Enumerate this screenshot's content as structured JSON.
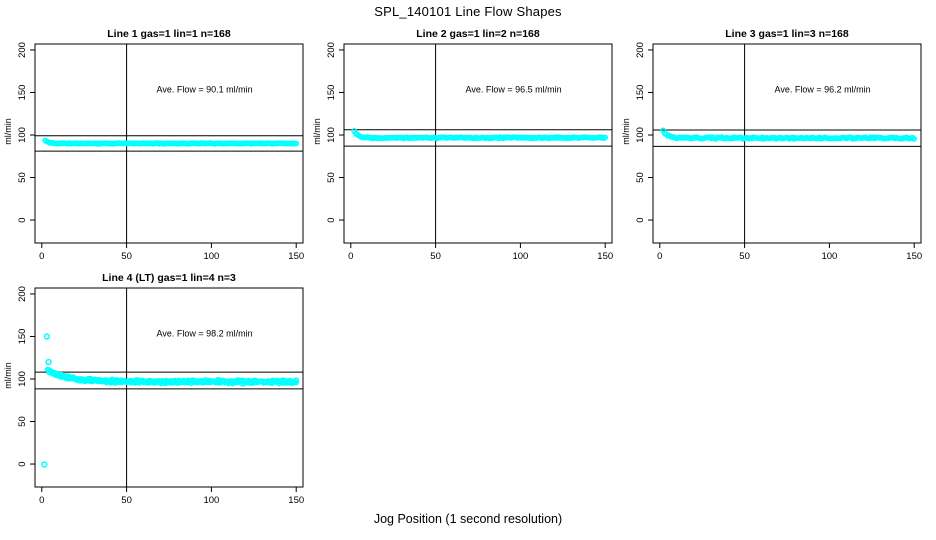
{
  "figure": {
    "title": "SPL_140101  Line Flow Shapes",
    "xlabel": "Jog Position (1 second resolution)"
  },
  "chart_data": {
    "type": "scatter",
    "title": "SPL_140101  Line Flow Shapes",
    "xlabel": "Jog Position (1 second resolution)",
    "ylabel": "ml/min",
    "point_color": "#00FFFF",
    "line_color": "#000000",
    "x_ticks": [
      0,
      50,
      100,
      150
    ],
    "y_ticks": [
      0,
      50,
      100,
      150,
      200
    ],
    "x_range": [
      -4,
      154
    ],
    "y_range": [
      -27,
      207
    ],
    "grid": false,
    "legend": "none",
    "plots": [
      {
        "title": "Line 1 gas=1 lin=1 n=168",
        "annotation": "Ave. Flow =  90.1  ml/min",
        "ave_flow_ml_min": 90.1,
        "n_points": 168,
        "ref_lines": {
          "horizontal": [
            99.11,
            81.09
          ],
          "vertical": 50
        },
        "annotation_pos": {
          "x": 96,
          "y": 150
        },
        "bands": [
          {
            "x_start": 2,
            "x_end": 150,
            "n": 168,
            "y_start": 93.5,
            "y_settle": 90.1,
            "decay": 0.5,
            "jitter": 0.55,
            "seed": 11
          }
        ],
        "outliers": []
      },
      {
        "title": "Line 2 gas=1 lin=2 n=168",
        "annotation": "Ave. Flow =  96.5  ml/min",
        "ave_flow_ml_min": 96.5,
        "n_points": 168,
        "ref_lines": {
          "horizontal": [
            106.15,
            86.85
          ],
          "vertical": 50
        },
        "annotation_pos": {
          "x": 96,
          "y": 150
        },
        "bands": [
          {
            "x_start": 2,
            "x_end": 150,
            "n": 168,
            "y_start": 105.0,
            "y_settle": 96.8,
            "decay": 0.45,
            "jitter": 0.9,
            "seed": 22
          }
        ],
        "outliers": []
      },
      {
        "title": "Line 3 gas=1 lin=3 n=168",
        "annotation": "Ave. Flow =  96.2  ml/min",
        "ave_flow_ml_min": 96.2,
        "n_points": 168,
        "ref_lines": {
          "horizontal": [
            105.82,
            86.58
          ],
          "vertical": 50
        },
        "annotation_pos": {
          "x": 96,
          "y": 150
        },
        "bands": [
          {
            "x_start": 2,
            "x_end": 150,
            "n": 168,
            "y_start": 105.0,
            "y_settle": 96.4,
            "decay": 0.4,
            "jitter": 1.2,
            "seed": 33
          }
        ],
        "outliers": []
      },
      {
        "title": "Line 4 (LT) gas=1 lin=4 n=3",
        "annotation": "Ave. Flow =  98.2  ml/min",
        "ave_flow_ml_min": 98.2,
        "n_points": 3,
        "ref_lines": {
          "horizontal": [
            108.02,
            88.38
          ],
          "vertical": 50
        },
        "annotation_pos": {
          "x": 96,
          "y": 150
        },
        "bands": [
          {
            "x_start": 3.5,
            "x_end": 150,
            "n": 115,
            "y_start": 111.0,
            "y_settle": 96.0,
            "decay": 0.085,
            "jitter": 1.7,
            "seed": 44
          },
          {
            "x_start": 4.0,
            "x_end": 150,
            "n": 115,
            "y_start": 110.0,
            "y_settle": 96.9,
            "decay": 0.09,
            "jitter": 1.7,
            "seed": 55
          },
          {
            "x_start": 4.5,
            "x_end": 150,
            "n": 115,
            "y_start": 109.0,
            "y_settle": 97.7,
            "decay": 0.08,
            "jitter": 1.6,
            "seed": 66
          }
        ],
        "outliers": [
          [
            1.5,
            -0.5
          ],
          [
            3,
            150
          ],
          [
            4,
            120
          ]
        ]
      }
    ]
  }
}
